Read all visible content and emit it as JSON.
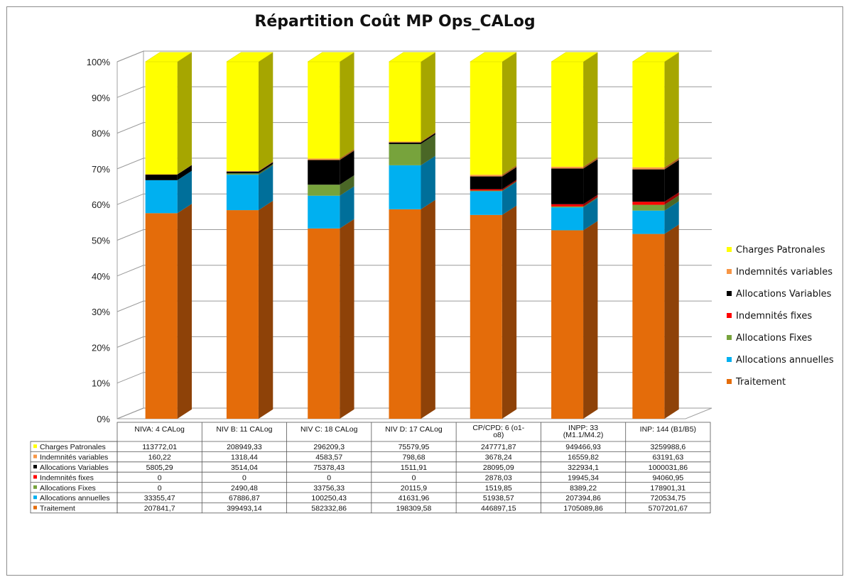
{
  "chart_data": {
    "type": "bar",
    "stacked": "percent",
    "three_d": true,
    "title": "Répartition Coût MP Ops_CALog",
    "ytick_labels": [
      "0%",
      "10%",
      "20%",
      "30%",
      "40%",
      "50%",
      "60%",
      "70%",
      "80%",
      "90%",
      "100%"
    ],
    "ylim": [
      0,
      100
    ],
    "grid": true,
    "legend_position": "right",
    "categories": [
      [
        "NIVA: 4 CALog"
      ],
      [
        "NIV B: 11 CALog"
      ],
      [
        "NIV C: 18 CALog"
      ],
      [
        "NIV D: 17 CALog"
      ],
      [
        "CP/CPD: 6 (o1-",
        "o8)"
      ],
      [
        "INPP: 33",
        "(M1.1/M4.2)"
      ],
      [
        "INP: 144 (B1/B5)"
      ]
    ],
    "series": [
      {
        "name": "Traitement",
        "color": "#e46c0a",
        "side_color": "#8e4208",
        "values": [
          207841.7,
          399493.14,
          582332.86,
          198309.58,
          446897.15,
          1705089.86,
          5707201.67
        ],
        "labels": [
          "207841,7",
          "399493,14",
          "582332,86",
          "198309,58",
          "446897,15",
          "1705089,86",
          "5707201,67"
        ]
      },
      {
        "name": "Allocations annuelles",
        "color": "#00b0f0",
        "side_color": "#006f9a",
        "values": [
          33355.47,
          67886.87,
          100250.43,
          41631.96,
          51938.57,
          207394.86,
          720534.75
        ],
        "labels": [
          "33355,47",
          "67886,87",
          "100250,43",
          "41631,96",
          "51938,57",
          "207394,86",
          "720534,75"
        ]
      },
      {
        "name": "Allocations Fixes",
        "color": "#77a33c",
        "side_color": "#4a6726",
        "values": [
          0,
          2490.48,
          33756.33,
          20115.9,
          1519.85,
          8389.22,
          178901.31
        ],
        "labels": [
          "0",
          "2490,48",
          "33756,33",
          "20115,9",
          "1519,85",
          "8389,22",
          "178901,31"
        ]
      },
      {
        "name": "Indemnités fixes",
        "color": "#ff0000",
        "side_color": "#990000",
        "values": [
          0,
          0,
          0,
          0,
          2878.03,
          19945.34,
          94060.95
        ],
        "labels": [
          "0",
          "0",
          "0",
          "0",
          "2878,03",
          "19945,34",
          "94060,95"
        ]
      },
      {
        "name": "Allocations Variables",
        "color": "#000000",
        "side_color": "#000000",
        "values": [
          5805.29,
          3514.04,
          75378.43,
          1511.91,
          28095.09,
          322934.1,
          1000031.86
        ],
        "labels": [
          "5805,29",
          "3514,04",
          "75378,43",
          "1511,91",
          "28095,09",
          "322934,1",
          "1000031,86"
        ]
      },
      {
        "name": "Indemnités variables",
        "color": "#f79646",
        "side_color": "#a85a1c",
        "values": [
          160.22,
          1318.44,
          4583.57,
          798.68,
          3678.24,
          16559.82,
          63191.63
        ],
        "labels": [
          "160,22",
          "1318,44",
          "4583,57",
          "798,68",
          "3678,24",
          "16559,82",
          "63191,63"
        ]
      },
      {
        "name": "Charges Patronales",
        "color": "#ffff00",
        "side_color": "#a6a600",
        "values": [
          113772.01,
          208949.33,
          296209.3,
          75579.95,
          247771.87,
          949466.93,
          3259988.6
        ],
        "labels": [
          "113772,01",
          "208949,33",
          "296209,3",
          "75579,95",
          "247771,87",
          "949466,93",
          "3259988,6"
        ]
      }
    ],
    "table_row_order": [
      "Charges Patronales",
      "Indemnités variables",
      "Allocations Variables",
      "Indemnités fixes",
      "Allocations Fixes",
      "Allocations annuelles",
      "Traitement"
    ],
    "legend_order": [
      "Charges Patronales",
      "Indemnités variables",
      "Allocations Variables",
      "Indemnités fixes",
      "Allocations Fixes",
      "Allocations annuelles",
      "Traitement"
    ]
  }
}
